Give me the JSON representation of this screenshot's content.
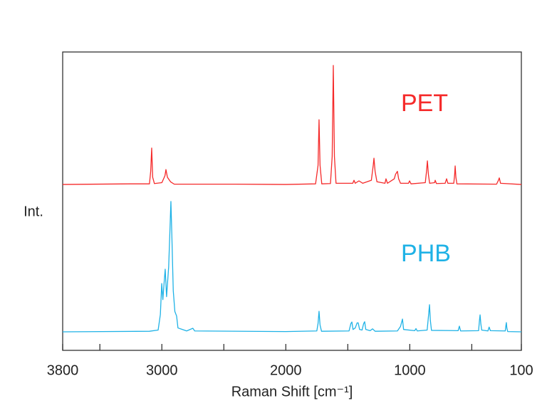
{
  "chart_data": {
    "type": "line",
    "x_label": "Raman Shift [cm⁻¹]",
    "y_label": "Int.",
    "xlim": [
      3800,
      100
    ],
    "xticks": [
      3800,
      3000,
      2000,
      1000,
      100
    ],
    "xminor_ticks": [
      3500,
      2500,
      1500,
      500
    ],
    "ylim": [
      0,
      100
    ],
    "grid": false,
    "series": [
      {
        "name": "PET",
        "color": "#f52a2a",
        "x": [
          3800,
          3250,
          3100,
          3090,
          3082,
          3074,
          3060,
          3000,
          2975,
          2967,
          2955,
          2930,
          2900,
          2400,
          2000,
          1760,
          1740,
          1732,
          1724,
          1710,
          1640,
          1626,
          1617,
          1608,
          1595,
          1460,
          1450,
          1440,
          1410,
          1380,
          1310,
          1295,
          1289,
          1280,
          1265,
          1200,
          1192,
          1180,
          1125,
          1115,
          1100,
          1090,
          1075,
          1010,
          1002,
          990,
          875,
          865,
          858,
          850,
          840,
          800,
          795,
          785,
          715,
          703,
          693,
          645,
          638,
          634,
          628,
          620,
          300,
          285,
          278,
          268,
          100
        ],
        "values": [
          55.6,
          55.8,
          55.8,
          60,
          67.8,
          58,
          55.9,
          56.2,
          58.5,
          60.6,
          58,
          56.5,
          55.7,
          55.7,
          55.6,
          55.8,
          62,
          77.3,
          62,
          55.8,
          55.9,
          65,
          95.5,
          65,
          56,
          56,
          57,
          56,
          56.8,
          56,
          57,
          62,
          64.4,
          60,
          56.5,
          56,
          57.5,
          56,
          57.5,
          59,
          60,
          57.5,
          56,
          56,
          56.8,
          55.8,
          56.2,
          60,
          63.5,
          59,
          56,
          56.2,
          57,
          55.9,
          56,
          57.5,
          56,
          56,
          59,
          61.8,
          58,
          55.8,
          55.7,
          57,
          57.8,
          56,
          55.6
        ]
      },
      {
        "name": "PHB",
        "color": "#1fb2e6",
        "x": [
          3800,
          3100,
          3030,
          3012,
          3001,
          2992,
          2983,
          2973,
          2962,
          2945,
          2935,
          2927,
          2919,
          2908,
          2895,
          2881,
          2870,
          2800,
          2750,
          2735,
          2000,
          1750,
          1740,
          1732,
          1724,
          1712,
          1490,
          1475,
          1467,
          1458,
          1440,
          1425,
          1416,
          1405,
          1385,
          1372,
          1364,
          1355,
          1320,
          1300,
          1280,
          1100,
          1075,
          1059,
          1050,
          960,
          950,
          940,
          860,
          848,
          841,
          834,
          825,
          610,
          600,
          590,
          445,
          438,
          433,
          427,
          420,
          370,
          360,
          350,
          230,
          224,
          221,
          217,
          210,
          100
        ],
        "values": [
          6.2,
          6.4,
          6.8,
          12,
          22.4,
          17,
          22,
          27.2,
          18,
          28,
          40,
          49.9,
          38,
          20,
          13,
          11.5,
          7.5,
          6.5,
          7.4,
          6.5,
          6.3,
          6.5,
          9,
          13.1,
          8.5,
          6.4,
          6.5,
          9,
          9.5,
          7,
          7.5,
          9.2,
          9.2,
          7,
          6.8,
          9,
          9.6,
          7,
          6.6,
          7.2,
          6.4,
          6.5,
          8,
          10.5,
          7,
          6.6,
          7.3,
          6.5,
          6.8,
          12,
          15.3,
          10,
          6.7,
          6.6,
          8.1,
          6.5,
          6.6,
          10,
          11.9,
          9,
          6.8,
          6.5,
          7.8,
          6.6,
          6.5,
          8.5,
          9.3,
          7.5,
          6.3,
          6.2
        ]
      }
    ]
  }
}
